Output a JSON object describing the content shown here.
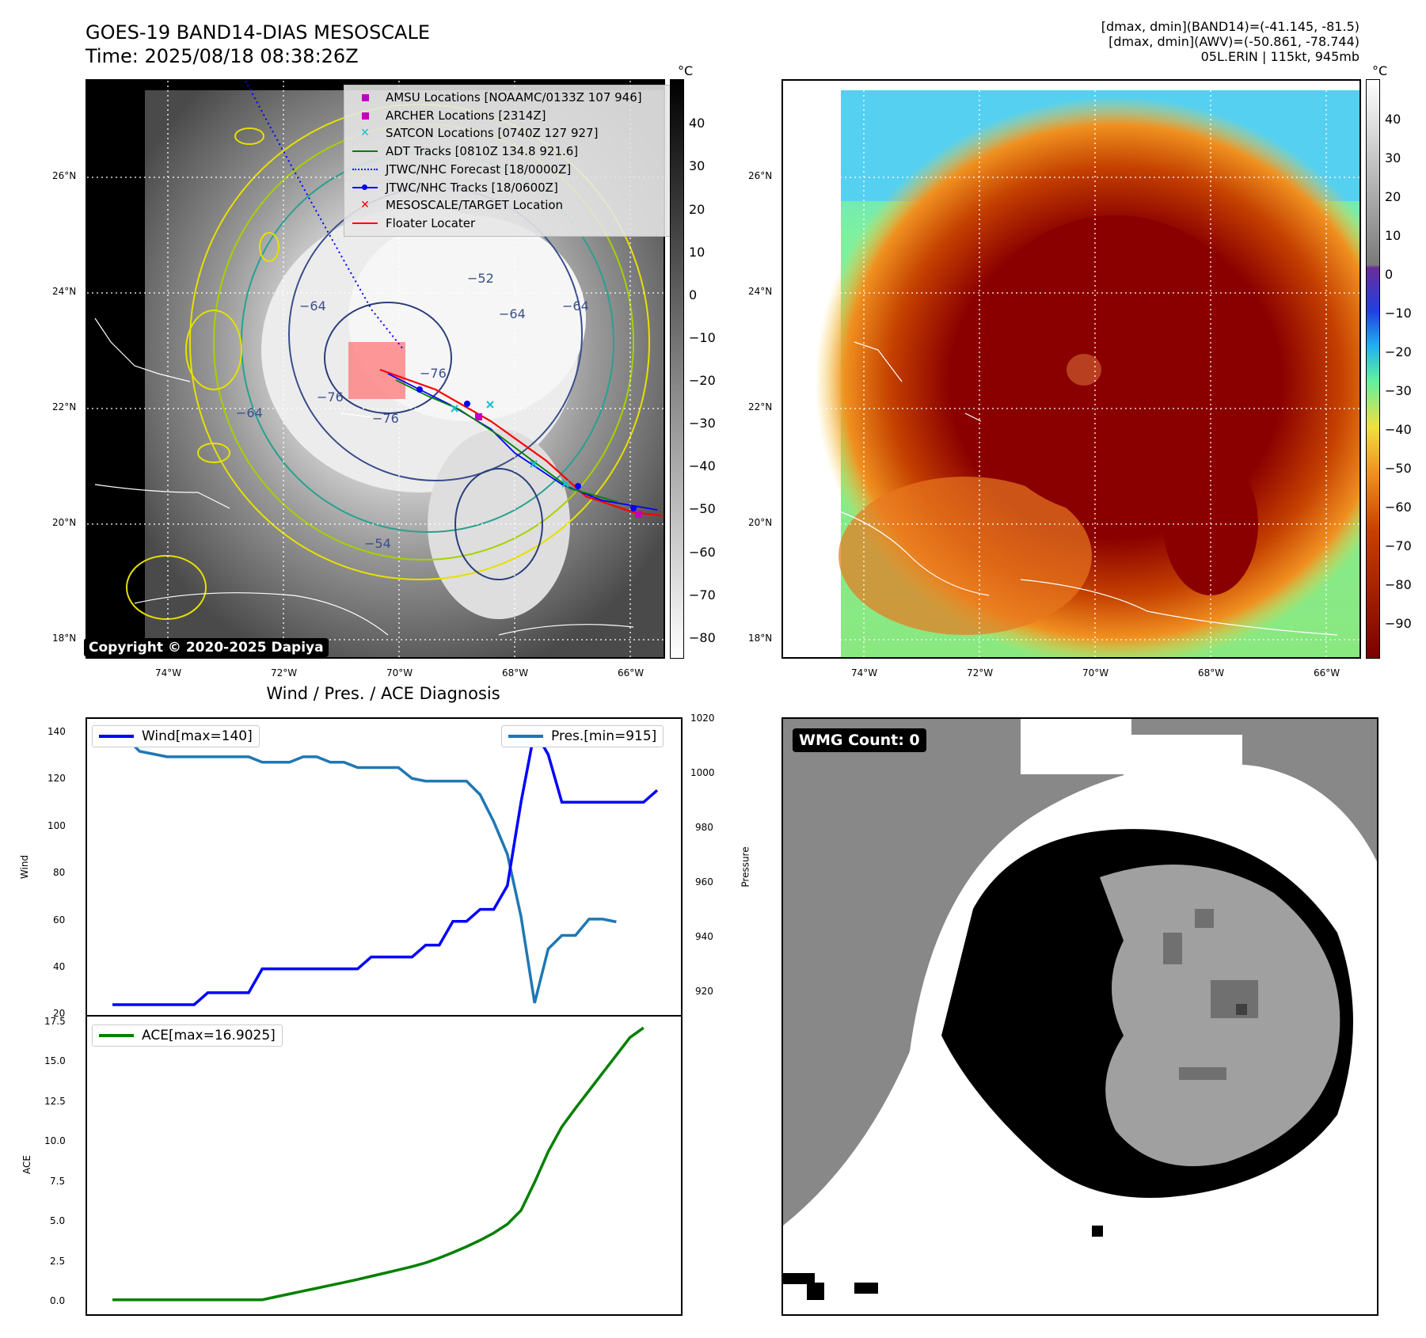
{
  "header": {
    "title_line1": "GOES-19 BAND14-DIAS MESOSCALE",
    "title_line2": "Time: 2025/08/18 08:38:26Z",
    "info_line1": "[dmax, dmin](BAND14)=(-41.145, -81.5)",
    "info_line2": "[dmax, dmin](AWV)=(-50.861, -78.744)",
    "info_line3": "05L.ERIN | 115kt, 945mb"
  },
  "maps": {
    "unit_label": "°C",
    "lat_labels": [
      "26°N",
      "24°N",
      "22°N",
      "20°N",
      "18°N"
    ],
    "lon_labels": [
      "74°W",
      "72°W",
      "70°W",
      "68°W",
      "66°W"
    ],
    "left_colorbar_ticks": [
      "40",
      "30",
      "20",
      "10",
      "0",
      "−10",
      "−20",
      "−30",
      "−40",
      "−50",
      "−60",
      "−70",
      "−80"
    ],
    "right_colorbar_ticks": [
      "40",
      "30",
      "20",
      "10",
      "0",
      "−10",
      "−20",
      "−30",
      "−40",
      "−50",
      "−60",
      "−70",
      "−80",
      "−90"
    ],
    "contour_labels": [
      "−64",
      "−64",
      "−76",
      "−76",
      "−64",
      "−76",
      "−64",
      "−52",
      "−54"
    ],
    "copyright": "Copyright © 2020-2025 Dapiya",
    "legend": [
      {
        "label": "AMSU Locations [NOAAMC/0133Z 107 946]",
        "icon": "square-marker",
        "color": "#c000c0"
      },
      {
        "label": "ARCHER Locations [2314Z]",
        "icon": "square-marker",
        "color": "#c000c0"
      },
      {
        "label": "SATCON Locations [0740Z 127 927]",
        "icon": "x-marker",
        "color": "#17becf"
      },
      {
        "label": "ADT Tracks [0810Z 134.8 921.6]",
        "icon": "solid-line",
        "color": "#008000"
      },
      {
        "label": "JTWC/NHC Forecast [18/0000Z]",
        "icon": "dotted-line",
        "color": "#0000ff"
      },
      {
        "label": "JTWC/NHC Tracks [18/0600Z]",
        "icon": "dot-line",
        "color": "#0000ff"
      },
      {
        "label": "MESOSCALE/TARGET Location",
        "icon": "x-marker",
        "color": "#ff0000"
      },
      {
        "label": "Floater Locater",
        "icon": "solid-line",
        "color": "#ff0000"
      }
    ]
  },
  "diagnosis": {
    "title": "Wind / Pres. / ACE Diagnosis",
    "wind_ylabel": "Wind",
    "pres_ylabel": "Pressure",
    "ace_ylabel": "ACE",
    "wind_legend": "Wind[max=140]",
    "pres_legend": "Pres.[min=915]",
    "ace_legend": "ACE[max=16.9025]",
    "wind_ticks": [
      "140",
      "120",
      "100",
      "80",
      "60",
      "40",
      "20"
    ],
    "pres_ticks": [
      "1020",
      "1000",
      "980",
      "960",
      "940",
      "920"
    ],
    "ace_ticks": [
      "17.5",
      "15.0",
      "12.5",
      "10.0",
      "7.5",
      "5.0",
      "2.5",
      "0.0"
    ]
  },
  "wmg": {
    "count_label": "WMG Count: 0"
  },
  "chart_data": [
    {
      "type": "line",
      "ylabel": "Wind",
      "ylim": [
        20,
        145
      ],
      "x": [
        0,
        1,
        2,
        3,
        4,
        5,
        6,
        7,
        8,
        9,
        10,
        11,
        12,
        13,
        14,
        15,
        16,
        17,
        18,
        19,
        20,
        21,
        22,
        23,
        24,
        25,
        26,
        27,
        28,
        29,
        30,
        31,
        32,
        33,
        34,
        35,
        36,
        37,
        38,
        39,
        40
      ],
      "series": [
        {
          "name": "Wind[max=140]",
          "color": "#0000ff",
          "values": [
            25,
            25,
            25,
            25,
            25,
            25,
            25,
            30,
            30,
            30,
            30,
            40,
            40,
            40,
            40,
            40,
            40,
            40,
            40,
            45,
            45,
            45,
            45,
            50,
            50,
            60,
            60,
            65,
            65,
            75,
            110,
            140,
            130,
            110,
            110,
            110,
            110,
            110,
            110,
            110,
            115
          ]
        }
      ]
    },
    {
      "type": "line",
      "ylabel": "Pressure",
      "ylim": [
        910,
        1020
      ],
      "series": [
        {
          "name": "Pres.[min=915]",
          "color": "#1f77b4",
          "values": [
            1013,
            1013,
            1008,
            1007,
            1006,
            1006,
            1006,
            1006,
            1006,
            1006,
            1006,
            1004,
            1004,
            1004,
            1006,
            1006,
            1004,
            1004,
            1002,
            1002,
            1002,
            1002,
            998,
            997,
            997,
            997,
            997,
            992,
            982,
            970,
            947,
            915,
            935,
            940,
            940,
            946,
            946,
            945
          ]
        }
      ]
    },
    {
      "type": "line",
      "ylabel": "ACE",
      "ylim": [
        -0.9,
        17.6
      ],
      "series": [
        {
          "name": "ACE[max=16.9025]",
          "color": "#008000",
          "values": [
            0,
            0,
            0,
            0,
            0,
            0,
            0,
            0,
            0,
            0,
            0,
            0,
            0.18,
            0.36,
            0.54,
            0.72,
            0.9,
            1.08,
            1.26,
            1.46,
            1.66,
            1.86,
            2.06,
            2.3,
            2.6,
            2.94,
            3.3,
            3.7,
            4.15,
            4.7,
            5.55,
            7.3,
            9.2,
            10.75,
            11.9,
            13.0,
            14.1,
            15.2,
            16.3,
            16.9
          ]
        }
      ]
    }
  ]
}
